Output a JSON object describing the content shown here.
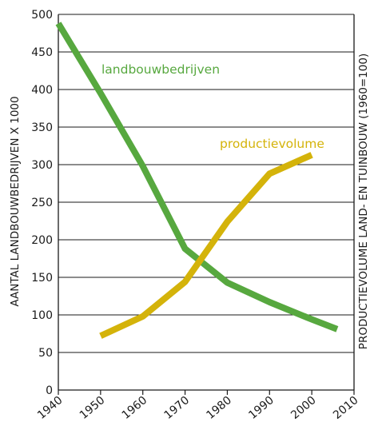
{
  "chart_data": {
    "type": "line",
    "xlabel": "",
    "ylabel_left": "AANTAL LANDBOUWBEDRIJVEN X 1000",
    "ylabel_right": "PRODUCTIEVOLUME LAND- EN TUINBOUW (1960=100)",
    "xlim": [
      1940,
      2010
    ],
    "ylim": [
      0,
      500
    ],
    "x_ticks": [
      "1940",
      "1950",
      "1960",
      "1970",
      "1980",
      "1990",
      "2000",
      "2010"
    ],
    "y_ticks": [
      "0",
      "50",
      "100",
      "150",
      "200",
      "250",
      "300",
      "350",
      "400",
      "450",
      "500"
    ],
    "grid": "horizontal",
    "series": [
      {
        "name": "landbouwbedrijven",
        "color": "#57a83f",
        "points": [
          [
            1940,
            488
          ],
          [
            1950,
            395
          ],
          [
            1960,
            298
          ],
          [
            1970,
            188
          ],
          [
            1980,
            143
          ],
          [
            1990,
            117
          ],
          [
            2000,
            94
          ],
          [
            2006,
            81
          ]
        ]
      },
      {
        "name": "productievolume",
        "color": "#d4b30a",
        "points": [
          [
            1950,
            72
          ],
          [
            1960,
            98
          ],
          [
            1970,
            144
          ],
          [
            1980,
            224
          ],
          [
            1990,
            288
          ],
          [
            2000,
            313
          ]
        ]
      }
    ]
  }
}
